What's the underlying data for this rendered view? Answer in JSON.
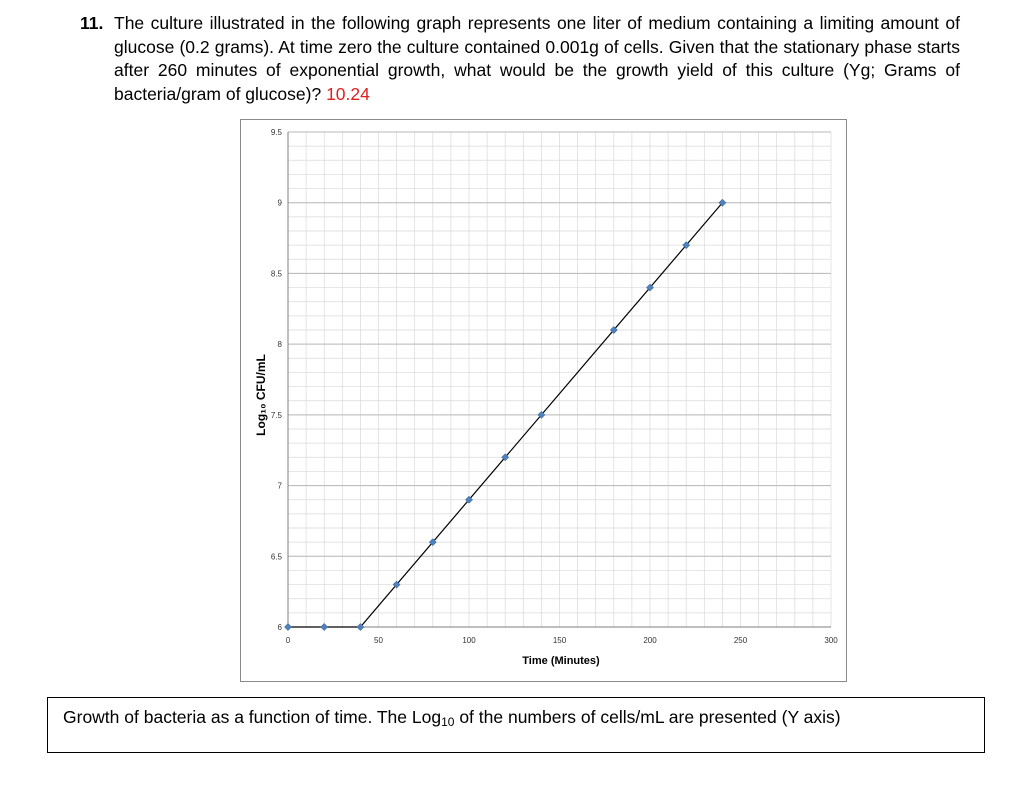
{
  "question": {
    "number": "11.",
    "text": "The culture illustrated in the following graph represents one liter of medium containing a limiting amount of glucose (0.2 grams). At time zero the culture contained 0.001g of cells. Given that the stationary phase starts after 260 minutes of exponential growth, what would be the growth yield of this culture (Yg; Grams of bacteria/gram of glucose)?",
    "answer": "10.24"
  },
  "caption": {
    "before": "Growth of bacteria as a function of time. The Log",
    "sub": "10",
    "after": " of the numbers of cells/mL are presented (Y axis)"
  },
  "colors": {
    "answer": "#e02020",
    "marker": "#4f81bd",
    "line": "#000000",
    "grid": "#d9d9d9"
  },
  "chart_data": {
    "type": "scatter",
    "xlabel": "Time (Minutes)",
    "ylabel": "Log₁₀ CFU/mL",
    "xlim": [
      0,
      300
    ],
    "ylim": [
      6,
      9.5
    ],
    "xticks": [
      0,
      50,
      100,
      150,
      200,
      250,
      300
    ],
    "yticks": [
      6,
      6.5,
      7,
      7.5,
      8,
      8.5,
      9,
      9.5
    ],
    "grid": true,
    "series": [
      {
        "x": [
          0,
          20,
          40,
          60,
          80,
          100,
          120,
          140,
          180,
          200,
          220,
          240
        ],
        "y": [
          6,
          6,
          6,
          6.3,
          6.6,
          6.9,
          7.2,
          7.5,
          8.1,
          8.4,
          8.7,
          9.0
        ]
      }
    ],
    "trend_line": {
      "x": [
        0,
        40,
        240
      ],
      "y": [
        6,
        6,
        9.0
      ]
    }
  }
}
